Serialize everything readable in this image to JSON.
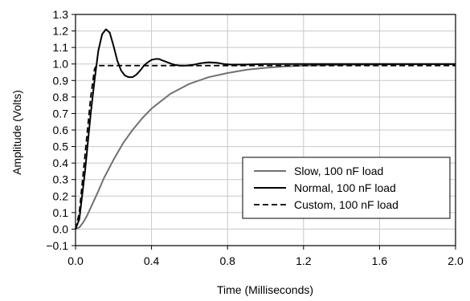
{
  "chart_data": {
    "type": "line",
    "title": "",
    "xlabel": "Time (Milliseconds)",
    "ylabel": "Amplitude (Volts)",
    "xlim": [
      0.0,
      2.0
    ],
    "ylim": [
      -0.1,
      1.3
    ],
    "x_ticks": [
      "0.0",
      "0.4",
      "0.8",
      "1.2",
      "1.6",
      "2.0"
    ],
    "y_ticks": [
      "1.3",
      "1.2",
      "1.1",
      "1.0",
      "0.9",
      "0.8",
      "0.7",
      "0.6",
      "0.5",
      "0.4",
      "0.3",
      "0.2",
      "0.1",
      "0.0",
      "−0.1"
    ],
    "grid": true,
    "legend_position": "lower-right",
    "series": [
      {
        "name": "Slow, 100 nF load",
        "color": "#707070",
        "style": "solid",
        "x": [
          0,
          0.02,
          0.04,
          0.06,
          0.08,
          0.1,
          0.12,
          0.15,
          0.2,
          0.25,
          0.3,
          0.35,
          0.4,
          0.5,
          0.6,
          0.7,
          0.8,
          0.9,
          1.0,
          1.1,
          1.2,
          1.4,
          1.6,
          1.8,
          2.0
        ],
        "values": [
          0,
          0.01,
          0.04,
          0.08,
          0.13,
          0.18,
          0.23,
          0.31,
          0.42,
          0.52,
          0.6,
          0.67,
          0.73,
          0.82,
          0.88,
          0.92,
          0.945,
          0.965,
          0.977,
          0.985,
          0.99,
          0.995,
          0.997,
          0.998,
          0.998
        ]
      },
      {
        "name": "Normal, 100 nF load",
        "color": "#000000",
        "style": "solid",
        "x": [
          0,
          0.02,
          0.05,
          0.08,
          0.1,
          0.12,
          0.14,
          0.16,
          0.18,
          0.2,
          0.22,
          0.24,
          0.26,
          0.28,
          0.3,
          0.32,
          0.34,
          0.36,
          0.38,
          0.4,
          0.42,
          0.44,
          0.46,
          0.48,
          0.5,
          0.52,
          0.55,
          0.58,
          0.62,
          0.66,
          0.7,
          0.74,
          0.78,
          0.82,
          0.9,
          1.0,
          1.2,
          1.5,
          2.0
        ],
        "values": [
          0,
          0.06,
          0.35,
          0.7,
          0.9,
          1.08,
          1.18,
          1.21,
          1.19,
          1.11,
          1.02,
          0.96,
          0.93,
          0.92,
          0.92,
          0.935,
          0.96,
          0.99,
          1.01,
          1.025,
          1.03,
          1.03,
          1.02,
          1.012,
          1.003,
          0.995,
          0.99,
          0.99,
          0.995,
          1.005,
          1.01,
          1.008,
          1.0,
          0.996,
          0.997,
          1.0,
          1.0,
          1.0,
          1.0
        ]
      },
      {
        "name": "Custom, 100 nF load",
        "color": "#000000",
        "style": "dashed",
        "x": [
          0,
          0.02,
          0.05,
          0.08,
          0.1,
          0.11,
          0.13,
          0.2,
          0.5,
          1.0,
          1.5,
          2.0
        ],
        "values": [
          0,
          0.1,
          0.45,
          0.8,
          0.97,
          0.99,
          0.99,
          0.99,
          0.99,
          0.99,
          0.99,
          0.99
        ]
      }
    ]
  }
}
